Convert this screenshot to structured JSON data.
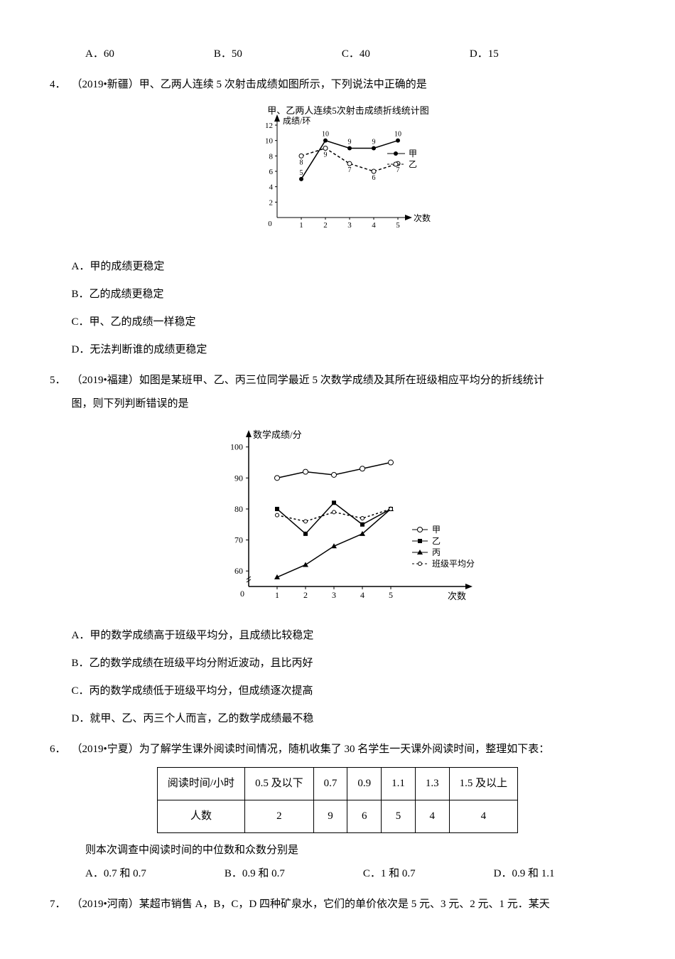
{
  "q3_options": {
    "A": "A．60",
    "B": "B．50",
    "C": "C．40",
    "D": "D．15"
  },
  "q4": {
    "num": "4．",
    "text": "（2019•新疆）甲、乙两人连续 5 次射击成绩如图所示，下列说法中正确的是",
    "chart": {
      "title": "甲、乙两人连续5次射击成绩折线统计图",
      "ylabel": "成绩/环",
      "xlabel": "次数",
      "xvals": [
        1,
        2,
        3,
        4,
        5
      ],
      "yticks": [
        2,
        4,
        6,
        8,
        10,
        12
      ],
      "series_jia": [
        5,
        10,
        9,
        9,
        10
      ],
      "series_yi": [
        8,
        9,
        7,
        6,
        7
      ],
      "values_jia_labels": [
        "5",
        "10",
        "9",
        "9",
        "10"
      ],
      "values_yi_labels": [
        "8",
        "9",
        "7",
        "6",
        "7"
      ],
      "color": "#000000",
      "legend_jia": "甲",
      "legend_yi": "乙"
    },
    "opts": {
      "A": "A．甲的成绩更稳定",
      "B": "B．乙的成绩更稳定",
      "C": "C．甲、乙的成绩一样稳定",
      "D": "D．无法判断谁的成绩更稳定"
    }
  },
  "q5": {
    "num": "5．",
    "text1": "（2019•福建）如图是某班甲、乙、丙三位同学最近 5 次数学成绩及其所在班级相应平均分的折线统计",
    "text2": "图，则下列判断错误的是",
    "chart": {
      "ylabel": "数学成绩/分",
      "xlabel": "次数",
      "xvals": [
        1,
        2,
        3,
        4,
        5
      ],
      "yticks": [
        60,
        70,
        80,
        90,
        100
      ],
      "series_jia": [
        90,
        92,
        91,
        93,
        95
      ],
      "series_yi": [
        80,
        72,
        82,
        75,
        80
      ],
      "series_bing": [
        58,
        62,
        68,
        72,
        80
      ],
      "series_avg": [
        78,
        76,
        79,
        77,
        80
      ],
      "legend_jia": "甲",
      "legend_yi": "乙",
      "legend_bing": "丙",
      "legend_avg": "班级平均分",
      "color": "#000000"
    },
    "opts": {
      "A": "A．甲的数学成绩高于班级平均分，且成绩比较稳定",
      "B": "B．乙的数学成绩在班级平均分附近波动，且比丙好",
      "C": "C．丙的数学成绩低于班级平均分，但成绩逐次提高",
      "D": "D．就甲、乙、丙三个人而言，乙的数学成绩最不稳"
    }
  },
  "q6": {
    "num": "6．",
    "text": "（2019•宁夏）为了解学生课外阅读时间情况，随机收集了 30 名学生一天课外阅读时间，整理如下表：",
    "table": {
      "headers": [
        "阅读时间/小时",
        "0.5 及以下",
        "0.7",
        "0.9",
        "1.1",
        "1.3",
        "1.5 及以上"
      ],
      "row_label": "人数",
      "row": [
        "2",
        "9",
        "6",
        "5",
        "4",
        "4"
      ]
    },
    "text2": "则本次调查中阅读时间的中位数和众数分别是",
    "opts": {
      "A": "A．0.7 和 0.7",
      "B": "B．0.9 和 0.7",
      "C": "C．1 和 0.7",
      "D": "D．0.9 和 1.1"
    }
  },
  "q7": {
    "num": "7．",
    "text": "（2019•河南）某超市销售 A，B，C，D 四种矿泉水，它们的单价依次是 5 元、3 元、2 元、1 元．某天"
  }
}
